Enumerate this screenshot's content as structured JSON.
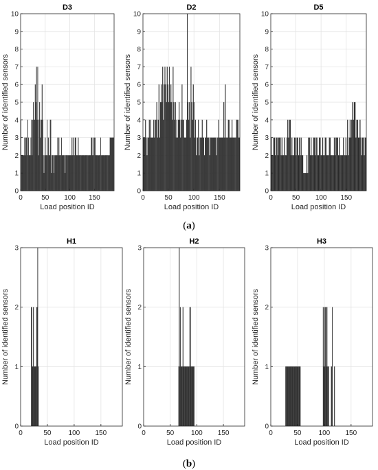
{
  "captions": {
    "a": "a",
    "b": "b"
  },
  "chart_data": [
    {
      "type": "bar",
      "title": "D3",
      "xlabel": "Load position ID",
      "ylabel": "Number of identified sensors",
      "xlim": [
        0,
        190
      ],
      "ylim": [
        0,
        10
      ],
      "xticks": [
        0,
        50,
        100,
        150
      ],
      "yticks": [
        0,
        1,
        2,
        3,
        4,
        5,
        6,
        7,
        8,
        9,
        10
      ],
      "grid": true,
      "values": [
        4,
        2,
        2,
        2,
        2,
        2,
        3,
        2,
        3,
        3,
        2,
        4,
        3,
        2,
        2,
        2,
        3,
        4,
        2,
        4,
        5,
        4,
        4,
        6,
        5,
        7,
        4,
        7,
        2,
        4,
        5,
        3,
        4,
        4,
        6,
        4,
        2,
        1,
        2,
        3,
        2,
        2,
        4,
        2,
        3,
        2,
        2,
        4,
        4,
        1,
        2,
        2,
        2,
        1,
        2,
        2,
        2,
        2,
        2,
        3,
        2,
        3,
        2,
        2,
        2,
        3,
        2,
        2,
        2,
        2,
        2,
        1,
        2,
        2,
        2,
        2,
        2,
        2,
        2,
        2,
        2,
        2,
        3,
        2,
        3,
        2,
        2,
        3,
        3,
        2,
        2,
        2,
        3,
        2,
        2,
        2,
        2,
        2,
        2,
        2,
        2,
        2,
        2,
        2,
        2,
        2,
        2,
        2,
        2,
        2,
        2,
        2,
        2,
        3,
        3,
        2,
        3,
        2,
        3,
        3,
        2,
        2,
        2,
        2,
        2,
        2,
        2,
        2,
        3,
        2,
        2,
        2,
        2,
        2,
        2,
        2,
        2,
        2,
        2,
        2,
        2,
        2,
        2,
        3,
        3,
        3,
        3,
        3,
        3,
        3
      ]
    },
    {
      "type": "bar",
      "title": "D2",
      "xlabel": "Load position ID",
      "ylabel": "Number of identified sensors",
      "xlim": [
        0,
        190
      ],
      "ylim": [
        0,
        10
      ],
      "xticks": [
        0,
        50,
        100,
        150
      ],
      "yticks": [
        0,
        1,
        2,
        3,
        4,
        5,
        6,
        7,
        8,
        9,
        10
      ],
      "grid": true,
      "values": [
        3,
        3,
        3,
        4,
        3,
        2,
        3,
        3,
        4,
        3,
        4,
        3,
        3,
        3,
        4,
        3,
        4,
        4,
        5,
        3,
        4,
        6,
        3,
        5,
        6,
        5,
        7,
        4,
        6,
        7,
        6,
        5,
        7,
        6,
        5,
        7,
        5,
        6,
        5,
        4,
        7,
        5,
        4,
        5,
        3,
        4,
        3,
        4,
        5,
        4,
        3,
        4,
        6,
        4,
        4,
        3,
        3,
        3,
        4,
        10,
        5,
        4,
        5,
        3,
        7,
        5,
        4,
        6,
        5,
        3,
        4,
        2,
        3,
        3,
        4,
        2,
        3,
        3,
        3,
        4,
        3,
        3,
        2,
        3,
        3,
        4,
        3,
        3,
        3,
        2,
        3,
        3,
        3,
        3,
        3,
        3,
        3,
        3,
        2,
        3,
        3,
        4,
        3,
        3,
        3,
        3,
        3,
        3,
        5,
        3,
        6,
        3,
        3,
        3,
        4,
        4,
        3,
        3,
        3,
        4,
        3,
        3,
        3,
        3,
        3,
        4,
        4,
        4,
        3,
        3
      ]
    },
    {
      "type": "bar",
      "title": "D5",
      "xlabel": "Load position ID",
      "ylabel": "Number of identified sensors",
      "xlim": [
        0,
        190
      ],
      "ylim": [
        0,
        10
      ],
      "xticks": [
        0,
        50,
        100,
        150
      ],
      "yticks": [
        0,
        1,
        2,
        3,
        4,
        5,
        6,
        7,
        8,
        9,
        10
      ],
      "grid": true,
      "values": [
        3,
        2,
        2,
        3,
        3,
        2,
        3,
        3,
        2,
        3,
        3,
        3,
        2,
        3,
        2,
        2,
        3,
        2,
        2,
        3,
        4,
        3,
        4,
        4,
        2,
        3,
        2,
        2,
        3,
        3,
        2,
        3,
        3,
        2,
        3,
        2,
        3,
        2,
        2,
        1,
        1,
        1,
        1,
        2,
        1,
        3,
        3,
        2,
        3,
        2,
        2,
        3,
        3,
        2,
        3,
        3,
        2,
        2,
        3,
        3,
        2,
        2,
        3,
        2,
        2,
        3,
        3,
        2,
        2,
        2,
        3,
        3,
        2,
        2,
        2,
        2,
        3,
        2,
        3,
        3,
        3,
        2,
        3,
        2,
        2,
        2,
        2,
        3,
        2,
        2,
        3,
        2,
        4,
        2,
        3,
        4,
        3,
        4,
        5,
        4,
        5,
        5,
        3,
        4,
        4,
        3,
        3,
        4,
        3,
        2,
        3,
        3,
        2,
        3,
        3
      ]
    },
    {
      "type": "bar",
      "title": "H1",
      "xlabel": "Load position ID",
      "ylabel": "Number of identified sensors",
      "xlim": [
        0,
        190
      ],
      "ylim": [
        0,
        3
      ],
      "xticks": [
        0,
        50,
        100,
        150
      ],
      "yticks": [
        0,
        1,
        2,
        3
      ],
      "grid": true,
      "x": [
        20,
        21,
        22,
        23,
        24,
        25,
        26,
        27,
        28,
        29,
        30,
        31,
        32,
        33
      ],
      "values": [
        2,
        2,
        1,
        1,
        2,
        1,
        1,
        1,
        1,
        1,
        2,
        2,
        3,
        1
      ]
    },
    {
      "type": "bar",
      "title": "H2",
      "xlabel": "Load position ID",
      "ylabel": "Number of identified sensors",
      "xlim": [
        0,
        190
      ],
      "ylim": [
        0,
        3
      ],
      "xticks": [
        0,
        50,
        100,
        150
      ],
      "yticks": [
        0,
        1,
        2,
        3
      ],
      "grid": true,
      "x": [
        66,
        67,
        68,
        69,
        70,
        71,
        72,
        73,
        74,
        75,
        76,
        77,
        78,
        79,
        80,
        81,
        82,
        83,
        84,
        85,
        86,
        87,
        88,
        89,
        90,
        91,
        92,
        93,
        94,
        95
      ],
      "values": [
        1,
        3,
        1,
        2,
        1,
        1,
        1,
        1,
        2,
        1,
        1,
        1,
        1,
        1,
        1,
        1,
        1,
        1,
        1,
        1,
        1,
        2,
        2,
        1,
        1,
        1,
        1,
        1,
        1,
        1
      ]
    },
    {
      "type": "bar",
      "title": "H3",
      "xlabel": "Load position ID",
      "ylabel": "Number of identified sensors",
      "xlim": [
        0,
        190
      ],
      "ylim": [
        0,
        3
      ],
      "xticks": [
        0,
        50,
        100,
        150
      ],
      "yticks": [
        0,
        1,
        2,
        3
      ],
      "grid": true,
      "x": [
        28,
        29,
        30,
        31,
        32,
        33,
        34,
        35,
        36,
        37,
        38,
        39,
        40,
        41,
        42,
        43,
        44,
        45,
        46,
        47,
        48,
        49,
        50,
        51,
        52,
        53,
        54,
        55,
        98,
        99,
        100,
        101,
        102,
        103,
        104,
        105,
        106,
        107,
        108,
        113,
        114,
        115,
        119
      ],
      "values": [
        1,
        1,
        1,
        1,
        1,
        1,
        1,
        1,
        1,
        1,
        1,
        1,
        1,
        1,
        1,
        1,
        1,
        1,
        1,
        1,
        1,
        1,
        1,
        1,
        1,
        1,
        1,
        1,
        2,
        1,
        1,
        2,
        2,
        1,
        2,
        2,
        1,
        1,
        1,
        1,
        1,
        2,
        1
      ]
    }
  ]
}
